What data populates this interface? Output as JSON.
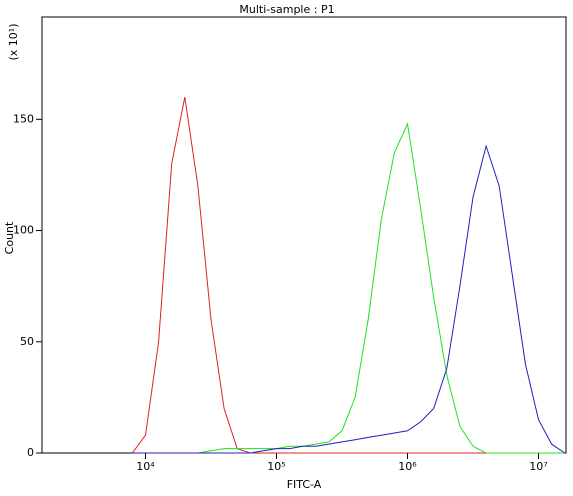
{
  "chart_data": {
    "type": "line",
    "title": "Multi-sample : P1",
    "x_label": "FITC-A",
    "y_label": "Count",
    "y_unit_label": "(x 10¹)",
    "log_x": true,
    "xlim": [
      1622,
      16218101
    ],
    "ylim": [
      0,
      196
    ],
    "xticks": [
      {
        "value": 10000,
        "label": "10⁴"
      },
      {
        "value": 100000,
        "label": "10⁵"
      },
      {
        "value": 1000000,
        "label": "10⁶"
      },
      {
        "value": 10000000,
        "label": "10⁷"
      }
    ],
    "yticks": [
      0,
      50,
      100,
      150
    ],
    "x": [
      7943,
      10000,
      12589,
      15849,
      19953,
      25119,
      31623,
      39811,
      50119,
      63096,
      79433,
      100000,
      125893,
      158489,
      199526,
      251189,
      316228,
      398107,
      501187,
      630957,
      794328,
      1000000,
      1258925,
      1584893,
      1995262,
      2511886,
      3162278,
      3981072,
      5011872,
      6309573,
      7943282,
      10000000,
      12589254,
      15848932
    ],
    "series": [
      {
        "color": "#e02020",
        "values": [
          0,
          8,
          50,
          130,
          160,
          120,
          60,
          20,
          2,
          0,
          0,
          0,
          0,
          0,
          0,
          0,
          0,
          0,
          0,
          0,
          0,
          0,
          0,
          0,
          0,
          0,
          0,
          0,
          0,
          0,
          0,
          0,
          0,
          0
        ]
      },
      {
        "color": "#20e020",
        "values": [
          0,
          0,
          0,
          0,
          0,
          0,
          1,
          2,
          2,
          2,
          2,
          2,
          3,
          3,
          4,
          5,
          10,
          25,
          60,
          105,
          135,
          148,
          110,
          70,
          35,
          12,
          3,
          0,
          0,
          0,
          0,
          0,
          0,
          0
        ]
      },
      {
        "color": "#2020c0",
        "values": [
          0,
          0,
          0,
          0,
          0,
          0,
          0,
          0,
          0,
          0,
          1,
          2,
          2,
          3,
          3,
          4,
          5,
          6,
          7,
          8,
          9,
          10,
          14,
          20,
          38,
          75,
          115,
          138,
          120,
          80,
          40,
          15,
          4,
          0
        ]
      }
    ]
  }
}
